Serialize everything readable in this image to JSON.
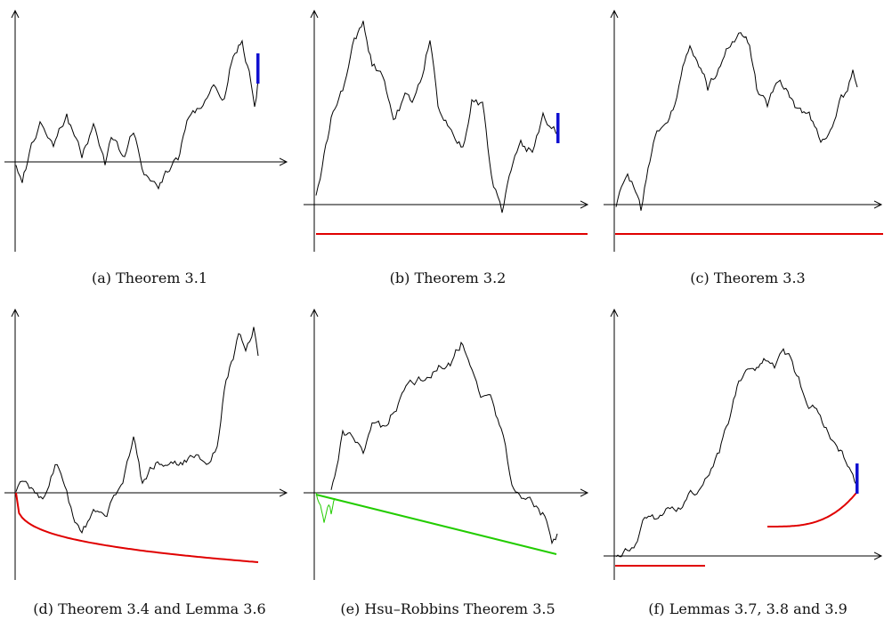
{
  "panels": [
    {
      "id": "a",
      "caption": "(a) Theorem 3.1"
    },
    {
      "id": "b",
      "caption": "(b) Theorem 3.2"
    },
    {
      "id": "c",
      "caption": "(c) Theorem 3.3"
    },
    {
      "id": "d",
      "caption": "(d) Theorem 3.4 and Lemma 3.6"
    },
    {
      "id": "e",
      "caption": "(e) Hsu–Robbins Theorem 3.5"
    },
    {
      "id": "f",
      "caption": "(f) Lemmas 3.7, 3.8 and 3.9"
    }
  ],
  "colors": {
    "path": "#000000",
    "axis": "#000000",
    "boundary_red": "#e00000",
    "window_blue": "#1010d0",
    "line_green": "#22cc00"
  }
}
